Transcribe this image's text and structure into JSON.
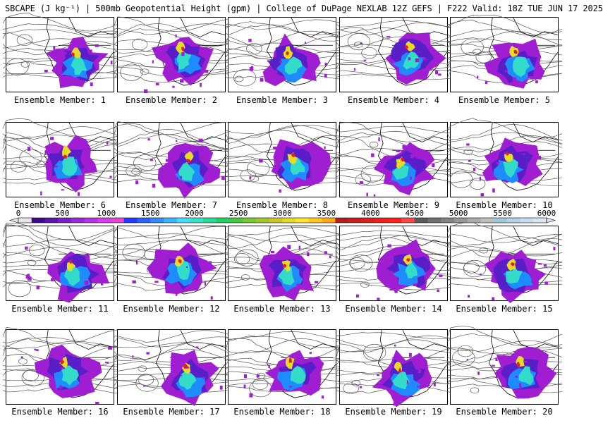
{
  "title": "SBCAPE (J kg⁻¹) | 500mb Geopotential Height (gpm) | College of DuPage NEXLAB 12Z GEFS | F222 Valid: 18Z TUE JUN 17 2025",
  "member_label_prefix": "Ensemble Member: ",
  "members": [
    "1",
    "2",
    "3",
    "4",
    "5",
    "6",
    "7",
    "8",
    "9",
    "10",
    "11",
    "12",
    "13",
    "14",
    "15",
    "16",
    "17",
    "18",
    "19",
    "20"
  ],
  "colorbar": {
    "ticks": [
      "0",
      "500",
      "1000",
      "1500",
      "2000",
      "2500",
      "3000",
      "3500",
      "4000",
      "4500",
      "5000",
      "5500",
      "6000"
    ],
    "colors": [
      "#e6e6e6",
      "#3c0a8c",
      "#5a14aa",
      "#7a1ec8",
      "#9a28d8",
      "#b832e6",
      "#d83cf0",
      "#e646d2",
      "#1e3cff",
      "#2864ff",
      "#328cff",
      "#3cb4ff",
      "#46dcff",
      "#32e6c8",
      "#28dc96",
      "#1ed264",
      "#46c83c",
      "#78c832",
      "#a0c828",
      "#c8c828",
      "#e6dc28",
      "#ffe628",
      "#ffc81e",
      "#ffaa14",
      "#b41e1e",
      "#c81e1e",
      "#dc1e1e",
      "#f01e1e",
      "#ff1e1e",
      "#ff4646",
      "#5a5a5a",
      "#6e6e6e",
      "#828282",
      "#969696",
      "#aaaaaa",
      "#bebebe",
      "#a0c8dc",
      "#b4d2e6",
      "#c8dcf0",
      "#dce6f0"
    ]
  },
  "map_palette": {
    "background": "#ffffff",
    "borders": "#000000",
    "contours": "#555555",
    "cape_low": "#a01ed2",
    "cape_mid1": "#5a1ec8",
    "cape_mid2": "#1e8cff",
    "cape_mid3": "#32dcc8",
    "cape_high": "#e6dc28",
    "cape_extreme": "#e61e1e"
  }
}
